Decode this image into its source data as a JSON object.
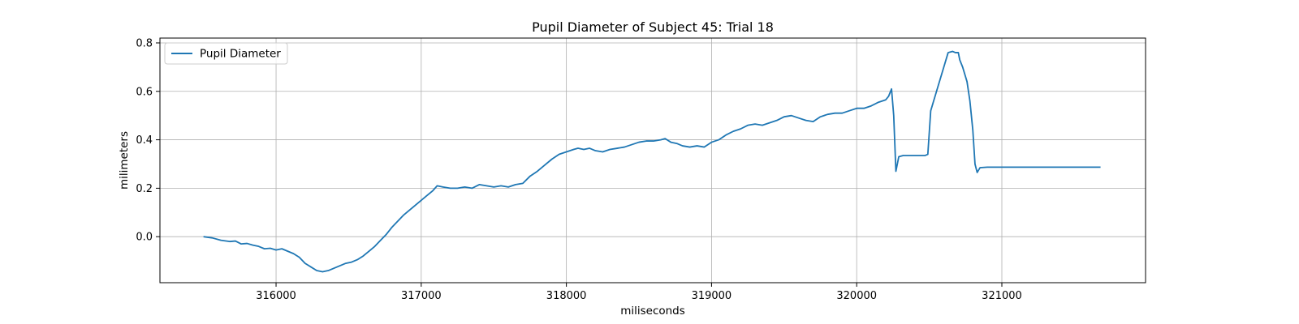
{
  "chart_data": {
    "type": "line",
    "title": "Pupil Diameter of Subject 45: Trial 18",
    "xlabel": "miliseconds",
    "ylabel": "milimeters",
    "xlim": [
      315200,
      321990
    ],
    "ylim": [
      -0.19,
      0.82
    ],
    "xticks": [
      316000,
      317000,
      318000,
      319000,
      320000,
      321000
    ],
    "yticks": [
      0.0,
      0.2,
      0.4,
      0.6,
      0.8
    ],
    "ytick_labels": [
      "0.0",
      "0.2",
      "0.4",
      "0.6",
      "0.8"
    ],
    "grid": true,
    "legend_position": "top-left",
    "series": [
      {
        "name": "Pupil Diameter",
        "color": "#1f77b4",
        "x": [
          315500,
          315560,
          315620,
          315680,
          315720,
          315760,
          315800,
          315840,
          315880,
          315920,
          315960,
          316000,
          316040,
          316080,
          316120,
          316160,
          316200,
          316240,
          316280,
          316320,
          316360,
          316400,
          316440,
          316480,
          316520,
          316560,
          316600,
          316640,
          316680,
          316720,
          316760,
          316800,
          316840,
          316880,
          316920,
          316960,
          317000,
          317040,
          317080,
          317110,
          317150,
          317200,
          317250,
          317300,
          317350,
          317400,
          317450,
          317500,
          317550,
          317600,
          317650,
          317700,
          317750,
          317800,
          317850,
          317900,
          317950,
          318000,
          318050,
          318080,
          318120,
          318160,
          318200,
          318250,
          318300,
          318350,
          318400,
          318450,
          318500,
          318550,
          318600,
          318650,
          318680,
          318720,
          318760,
          318800,
          318850,
          318900,
          318950,
          319000,
          319050,
          319100,
          319150,
          319200,
          319250,
          319300,
          319350,
          319400,
          319450,
          319500,
          319550,
          319600,
          319650,
          319700,
          319750,
          319800,
          319850,
          319900,
          319950,
          320000,
          320050,
          320100,
          320150,
          320200,
          320220,
          320240,
          320255,
          320270,
          320290,
          320320,
          320400,
          320470,
          320490,
          320510,
          320550,
          320600,
          320630,
          320660,
          320680,
          320700,
          320710,
          320730,
          320760,
          320780,
          320800,
          320815,
          320830,
          320850,
          320900,
          321000,
          321200,
          321500,
          321680
        ],
        "y": [
          0.0,
          -0.005,
          -0.015,
          -0.02,
          -0.018,
          -0.03,
          -0.028,
          -0.035,
          -0.04,
          -0.05,
          -0.048,
          -0.055,
          -0.05,
          -0.06,
          -0.07,
          -0.085,
          -0.11,
          -0.125,
          -0.14,
          -0.145,
          -0.14,
          -0.13,
          -0.12,
          -0.11,
          -0.105,
          -0.095,
          -0.08,
          -0.06,
          -0.04,
          -0.015,
          0.01,
          0.04,
          0.065,
          0.09,
          0.11,
          0.13,
          0.15,
          0.17,
          0.19,
          0.21,
          0.205,
          0.2,
          0.2,
          0.205,
          0.2,
          0.215,
          0.21,
          0.205,
          0.21,
          0.205,
          0.215,
          0.22,
          0.25,
          0.27,
          0.295,
          0.32,
          0.34,
          0.35,
          0.36,
          0.365,
          0.36,
          0.365,
          0.355,
          0.35,
          0.36,
          0.365,
          0.37,
          0.38,
          0.39,
          0.395,
          0.395,
          0.4,
          0.405,
          0.39,
          0.385,
          0.375,
          0.37,
          0.375,
          0.37,
          0.39,
          0.4,
          0.42,
          0.435,
          0.445,
          0.46,
          0.465,
          0.46,
          0.47,
          0.48,
          0.495,
          0.5,
          0.49,
          0.48,
          0.475,
          0.495,
          0.505,
          0.51,
          0.51,
          0.52,
          0.53,
          0.53,
          0.54,
          0.555,
          0.565,
          0.58,
          0.61,
          0.5,
          0.27,
          0.33,
          0.335,
          0.335,
          0.335,
          0.34,
          0.52,
          0.6,
          0.7,
          0.76,
          0.765,
          0.76,
          0.76,
          0.73,
          0.7,
          0.64,
          0.56,
          0.44,
          0.3,
          0.265,
          0.285,
          0.287,
          0.287,
          0.287,
          0.287,
          0.287
        ]
      }
    ]
  }
}
